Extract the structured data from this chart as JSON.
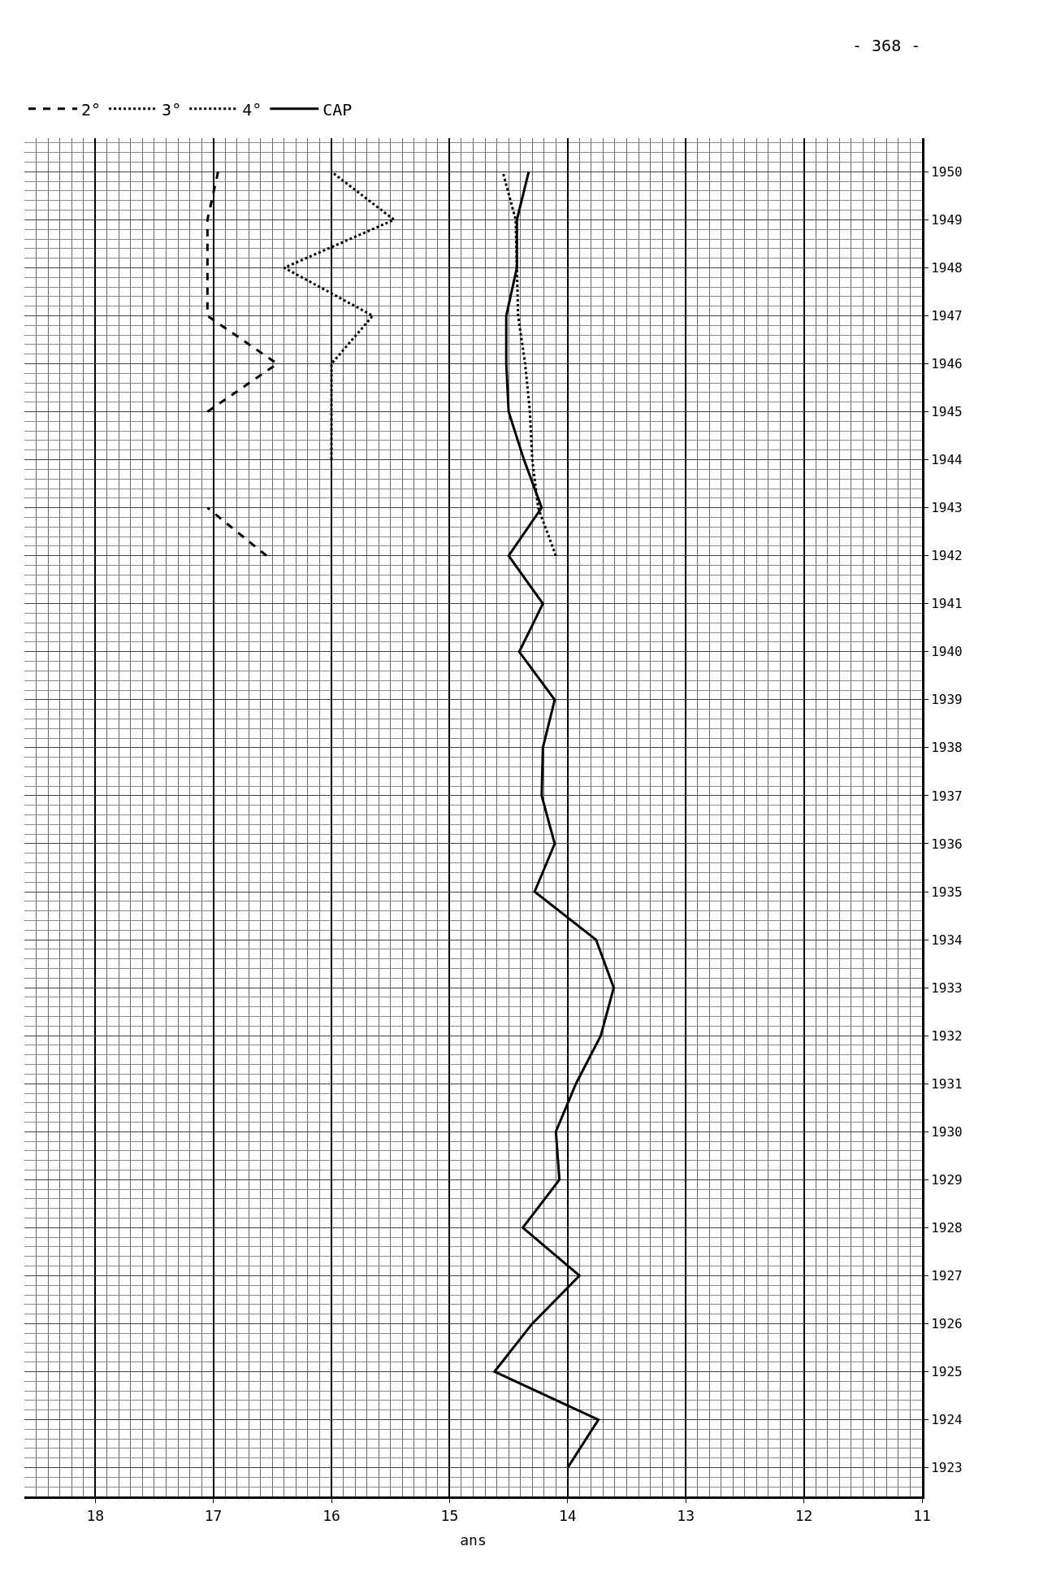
{
  "chart_data": {
    "type": "line",
    "orientation": "horizontal",
    "xlabel": "ans",
    "annotations": [
      "- 368 -"
    ],
    "x": [
      1923,
      1924,
      1925,
      1926,
      1927,
      1928,
      1929,
      1930,
      1931,
      1932,
      1933,
      1934,
      1935,
      1936,
      1937,
      1938,
      1939,
      1940,
      1941,
      1942,
      1943,
      1944,
      1945,
      1946,
      1947,
      1948,
      1949,
      1950
    ],
    "series": [
      {
        "name": "2°",
        "color": "#000000",
        "line_style": "dashed",
        "values": [
          null,
          null,
          null,
          null,
          null,
          null,
          null,
          null,
          null,
          null,
          null,
          null,
          null,
          null,
          null,
          null,
          null,
          null,
          null,
          16.55,
          17.05,
          null,
          17.05,
          16.46,
          17.05,
          17.05,
          17.05,
          16.96
        ]
      },
      {
        "name": "3°",
        "color": "#000000",
        "line_style": "dotted",
        "values": [
          null,
          null,
          null,
          null,
          null,
          null,
          null,
          null,
          null,
          null,
          null,
          null,
          null,
          null,
          null,
          null,
          null,
          null,
          null,
          null,
          null,
          16.0,
          16.0,
          16.0,
          15.65,
          16.4,
          15.47,
          16.0
        ]
      },
      {
        "name": "4°",
        "color": "#000000",
        "line_style": "dotted",
        "values": [
          null,
          null,
          null,
          null,
          null,
          null,
          null,
          null,
          null,
          null,
          null,
          null,
          null,
          null,
          null,
          null,
          null,
          null,
          null,
          14.1,
          14.25,
          14.3,
          14.32,
          14.36,
          14.42,
          14.43,
          14.44,
          14.55
        ]
      },
      {
        "name": "CAP",
        "color": "#000000",
        "line_style": "solid",
        "values": [
          14.0,
          13.74,
          14.62,
          14.3,
          13.9,
          14.38,
          14.07,
          14.1,
          13.93,
          13.72,
          13.61,
          13.76,
          14.28,
          14.11,
          14.22,
          14.21,
          14.11,
          14.41,
          14.21,
          14.5,
          14.22,
          14.37,
          14.5,
          14.52,
          14.52,
          14.43,
          14.43,
          14.33
        ]
      }
    ],
    "xlim": [
      18.6,
      11
    ],
    "xticks": [
      18,
      17,
      16,
      15,
      14,
      13,
      12,
      11
    ],
    "ylim": [
      1922.4,
      1950.7
    ],
    "yticks": [
      1923,
      1924,
      1925,
      1926,
      1927,
      1928,
      1929,
      1930,
      1931,
      1932,
      1933,
      1934,
      1935,
      1936,
      1937,
      1938,
      1939,
      1940,
      1941,
      1942,
      1943,
      1944,
      1945,
      1946,
      1947,
      1948,
      1949,
      1950
    ],
    "grid": true,
    "legend": "top left"
  }
}
